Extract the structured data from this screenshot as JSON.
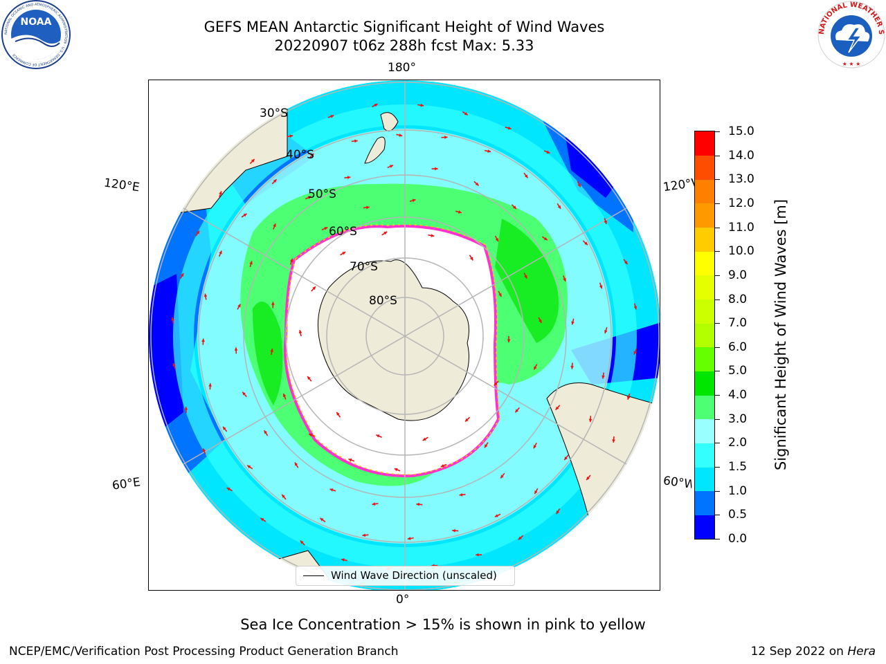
{
  "title": {
    "line1": "GEFS MEAN Antarctic Significant Height of Wind Waves",
    "line2": "20220907 t06z 288h fcst   Max: 5.33"
  },
  "logos": {
    "left": {
      "text": "NOAA",
      "ring_text": "NATIONAL OCEANIC AND ATMOSPHERIC ADMINISTRATION · U.S. DEPARTMENT OF COMMERCE"
    },
    "right": {
      "ring_text": "NATIONAL WEATHER SERVICE"
    }
  },
  "map": {
    "projection": "south-polar-stereographic",
    "lon_labels": {
      "top": "180°",
      "bottom": "0°",
      "upper_left": "120°E",
      "lower_left": "60°E",
      "upper_right": "120°W",
      "lower_right": "60°W"
    },
    "lat_labels": [
      "30°S",
      "40°S",
      "50°S",
      "60°S",
      "70°S",
      "80°S"
    ],
    "legend": {
      "label": "Wind Wave Direction (unscaled)"
    },
    "colors": {
      "land": "#efebd9",
      "grid": "#b5b5b5",
      "arrow": "#ee1111",
      "ice_edge": "#ff33cc"
    }
  },
  "colorbar": {
    "label": "Significant Height of Wind Waves [m]",
    "ticks": [
      "0.0",
      "0.5",
      "1.0",
      "1.5",
      "2.0",
      "3.0",
      "4.0",
      "5.0",
      "6.0",
      "7.0",
      "8.0",
      "9.0",
      "10.0",
      "11.0",
      "12.0",
      "13.0",
      "14.0",
      "15.0"
    ],
    "colors": [
      "#0000ff",
      "#0073ff",
      "#00e6ff",
      "#33ffff",
      "#99ffff",
      "#4dff73",
      "#00e600",
      "#66ff00",
      "#b3ff00",
      "#ccff00",
      "#e6ff00",
      "#ffff00",
      "#ffcc00",
      "#ff9900",
      "#ff8000",
      "#ff4d00",
      "#ff0000"
    ]
  },
  "note": "Sea Ice Concentration > 15% is shown in pink to yellow",
  "footer": {
    "left": "NCEP/EMC/Verification Post Processing Product Generation Branch",
    "right_date": "12 Sep 2022 on ",
    "right_machine": "Hera"
  }
}
